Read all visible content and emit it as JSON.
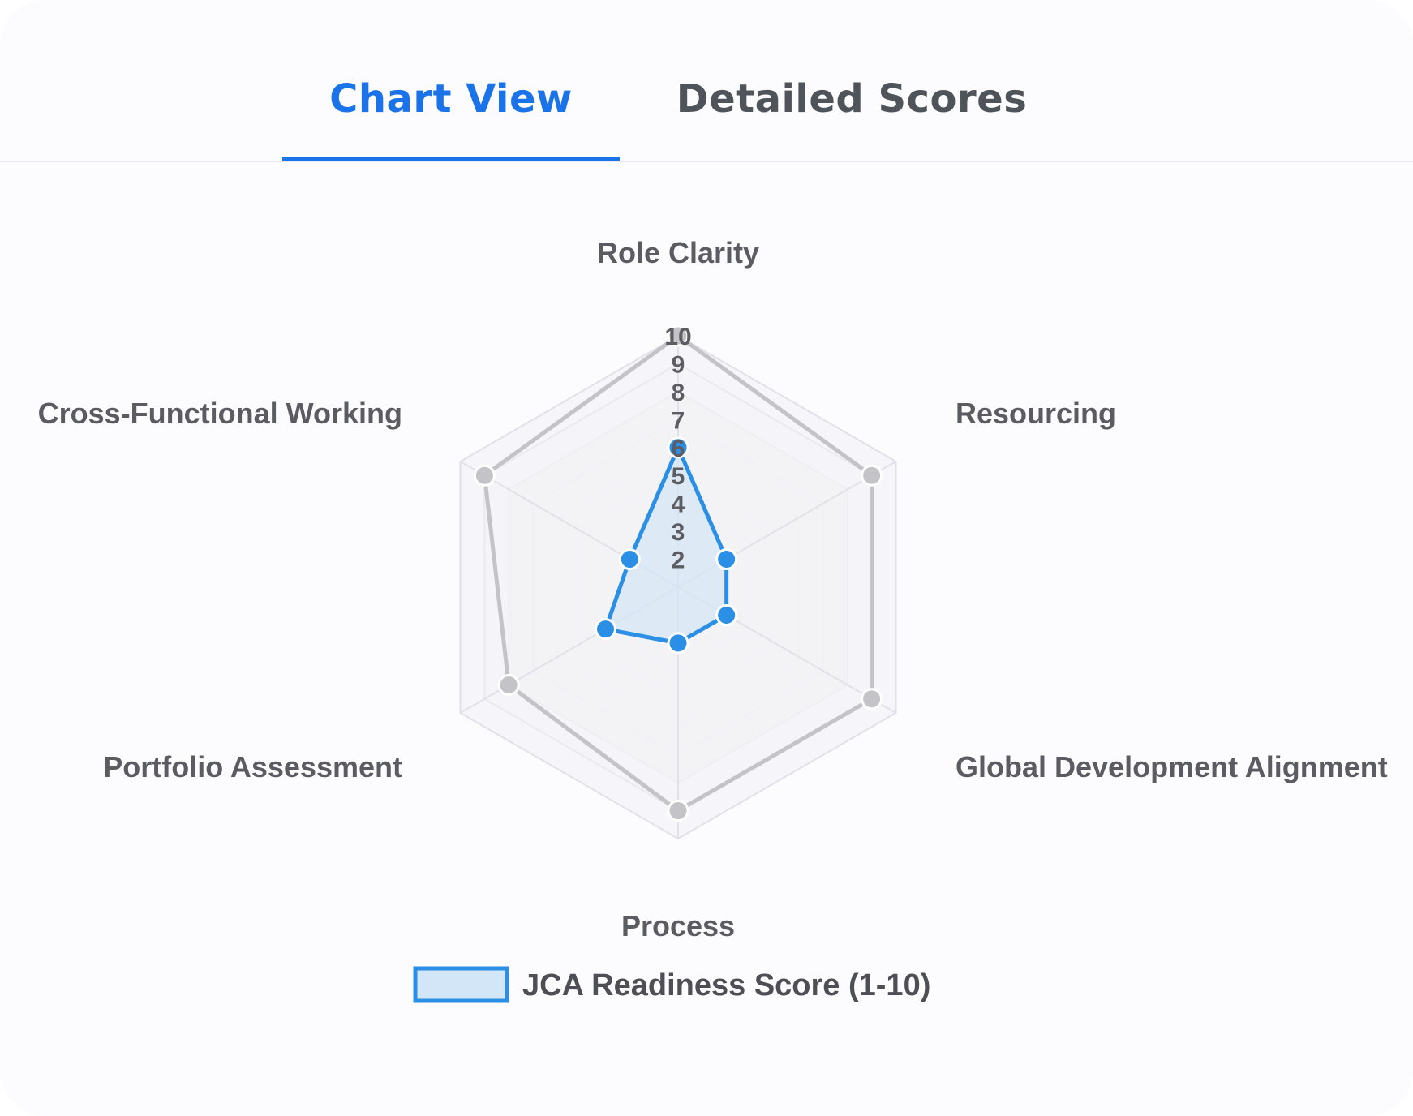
{
  "tabs": [
    {
      "label": "Chart View",
      "active": true
    },
    {
      "label": "Detailed Scores",
      "active": false
    }
  ],
  "colors": {
    "accent": "#1a73e8",
    "series": "#2b8fe5",
    "series_fill": "#d3e6f7",
    "baseline": "#c4c4c8",
    "grid": "#e2e1e8"
  },
  "chart_data": {
    "type": "radar",
    "categories": [
      "Role Clarity",
      "Resourcing",
      "Global Development Alignment",
      "Process",
      "Portfolio Assessment",
      "Cross-Functional Working"
    ],
    "series": [
      {
        "name": "JCA Readiness Score (1-10)",
        "values": [
          6,
          3,
          3,
          3,
          4,
          3
        ]
      },
      {
        "name": "",
        "values": [
          10,
          9,
          9,
          9,
          8,
          9
        ]
      }
    ],
    "r_ticks": [
      "2",
      "3",
      "4",
      "5",
      "6",
      "7",
      "8",
      "9",
      "10"
    ],
    "r_range": [
      1,
      10
    ],
    "legend": {
      "position": "bottom",
      "label": "JCA Readiness Score (1-10)"
    },
    "grid": true
  }
}
